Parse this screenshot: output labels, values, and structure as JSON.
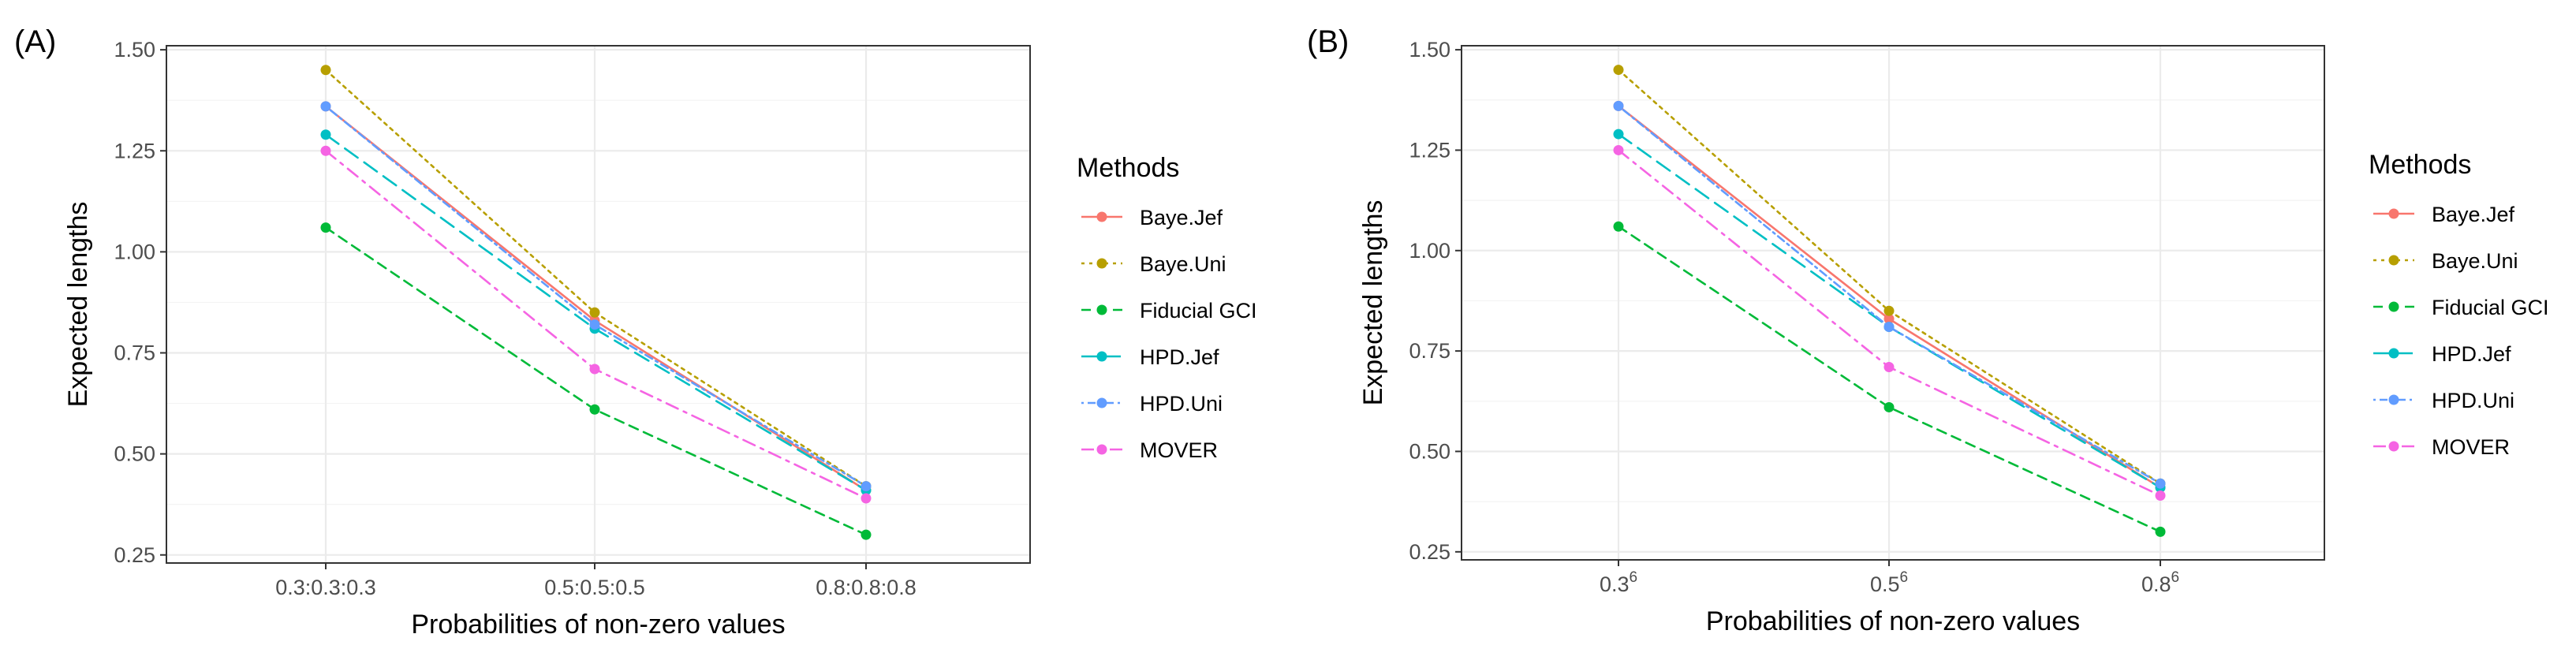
{
  "colors": {
    "Baye.Jef": "#F8766D",
    "Baye.Uni": "#B79F00",
    "Fiducial GCI": "#00BA38",
    "HPD.Jef": "#00BFC4",
    "HPD.Uni": "#619CFF",
    "MOVER": "#F564E3"
  },
  "line_styles": {
    "Baye.Jef": "solid",
    "Baye.Uni": "dotted",
    "Fiducial GCI": "dashed",
    "HPD.Jef": "longdash",
    "HPD.Uni": "dotdash-fine",
    "MOVER": "dotdash"
  },
  "chart_data": [
    {
      "type": "line",
      "panel_label": "(A)",
      "xlabel": "Probabilities of non-zero values",
      "ylabel": "Expected lengths",
      "categories": [
        "0.3:0.3:0.3",
        "0.5:0.5:0.5",
        "0.8:0.8:0.8"
      ],
      "category_bases": [
        "",
        "",
        ""
      ],
      "category_exponents": [
        "",
        "",
        ""
      ],
      "ylim": [
        0.23,
        1.51
      ],
      "yticks": [
        0.25,
        0.5,
        0.75,
        1.0,
        1.25,
        1.5
      ],
      "ytick_labels": [
        "0.25",
        "0.50",
        "0.75",
        "1.00",
        "1.25",
        "1.50"
      ],
      "grid": true,
      "legend_title": "Methods",
      "legend_position": "right",
      "series": [
        {
          "name": "Baye.Jef",
          "values": [
            1.36,
            0.83,
            0.41
          ]
        },
        {
          "name": "Baye.Uni",
          "values": [
            1.45,
            0.85,
            0.42
          ]
        },
        {
          "name": "Fiducial GCI",
          "values": [
            1.06,
            0.61,
            0.3
          ]
        },
        {
          "name": "HPD.Jef",
          "values": [
            1.29,
            0.81,
            0.41
          ]
        },
        {
          "name": "HPD.Uni",
          "values": [
            1.36,
            0.82,
            0.42
          ]
        },
        {
          "name": "MOVER",
          "values": [
            1.25,
            0.71,
            0.39
          ]
        }
      ]
    },
    {
      "type": "line",
      "panel_label": "(B)",
      "xlabel": "Probabilities of non-zero values",
      "ylabel": "Expected lengths",
      "categories": [
        "0.3^6",
        "0.5^6",
        "0.8^6"
      ],
      "category_bases": [
        "0.3",
        "0.5",
        "0.8"
      ],
      "category_exponents": [
        "6",
        "6",
        "6"
      ],
      "ylim": [
        0.23,
        1.51
      ],
      "yticks": [
        0.25,
        0.5,
        0.75,
        1.0,
        1.25,
        1.5
      ],
      "ytick_labels": [
        "0.25",
        "0.50",
        "0.75",
        "1.00",
        "1.25",
        "1.50"
      ],
      "grid": true,
      "legend_title": "Methods",
      "legend_position": "right",
      "series": [
        {
          "name": "Baye.Jef",
          "values": [
            1.36,
            0.83,
            0.41
          ]
        },
        {
          "name": "Baye.Uni",
          "values": [
            1.45,
            0.85,
            0.42
          ]
        },
        {
          "name": "Fiducial GCI",
          "values": [
            1.06,
            0.61,
            0.3
          ]
        },
        {
          "name": "HPD.Jef",
          "values": [
            1.29,
            0.81,
            0.41
          ]
        },
        {
          "name": "HPD.Uni",
          "values": [
            1.36,
            0.81,
            0.42
          ]
        },
        {
          "name": "MOVER",
          "values": [
            1.25,
            0.71,
            0.39
          ]
        }
      ]
    }
  ]
}
